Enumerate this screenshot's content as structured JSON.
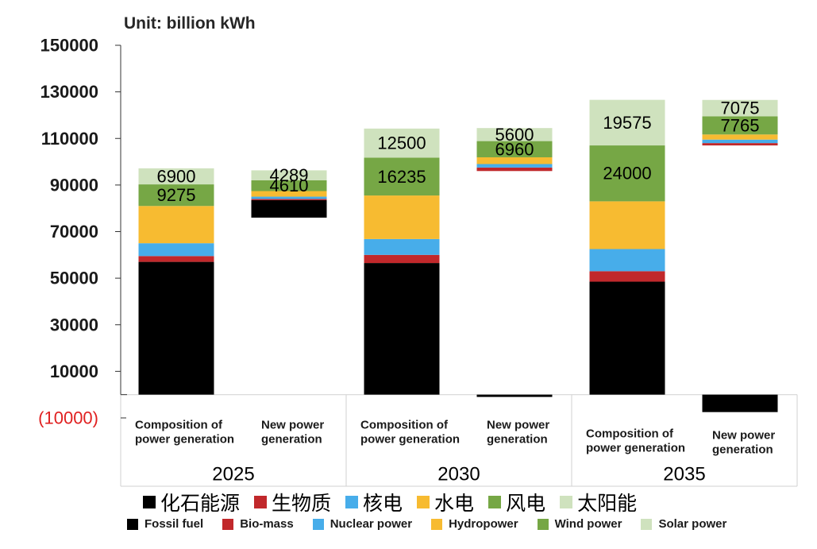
{
  "chart_data": {
    "type": "bar",
    "stacked": true,
    "title": "Unit: billion kWh",
    "ylim": [
      -10000,
      150000
    ],
    "yticks": [
      {
        "value": 150000,
        "label": "150000"
      },
      {
        "value": 130000,
        "label": "130000"
      },
      {
        "value": 110000,
        "label": "110000"
      },
      {
        "value": 90000,
        "label": "90000"
      },
      {
        "value": 70000,
        "label": "70000"
      },
      {
        "value": 50000,
        "label": "50000"
      },
      {
        "value": 30000,
        "label": "30000"
      },
      {
        "value": 10000,
        "label": "10000"
      },
      {
        "value": -10000,
        "label": "(10000)"
      }
    ],
    "negative_label_color": "#e02020",
    "years": [
      "2025",
      "2030",
      "2035"
    ],
    "bar_labels": [
      [
        "Composition of",
        "power generation"
      ],
      [
        "New power",
        "generation"
      ]
    ],
    "series_keys": [
      "fossil",
      "bio",
      "nuclear",
      "hydro",
      "wind",
      "solar"
    ],
    "colors": {
      "fossil": "#000000",
      "bio": "#c1282b",
      "nuclear": "#47adea",
      "hydro": "#f7bb31",
      "wind": "#76a745",
      "solar": "#cfe2be"
    },
    "bars": [
      {
        "base": 0,
        "values": [
          57000,
          2500,
          5500,
          16000,
          9275,
          6900
        ],
        "labels": {
          "wind": "9275",
          "solar": "6900"
        }
      },
      {
        "base": 76000,
        "values": [
          7500,
          500,
          1000,
          2400,
          4610,
          4289
        ],
        "labels": {
          "wind": "4610",
          "solar": "4289"
        }
      },
      {
        "base": 0,
        "values": [
          56500,
          3500,
          6800,
          18700,
          16235,
          12500
        ],
        "labels": {
          "wind": "16235",
          "solar": "12500"
        }
      },
      {
        "base": 96000,
        "values": [
          -1000,
          1500,
          1500,
          2900,
          6960,
          5600
        ],
        "labels": {
          "wind": "6960",
          "solar": "5600"
        }
      },
      {
        "base": 0,
        "values": [
          48500,
          4500,
          9500,
          20500,
          24000,
          19575
        ],
        "labels": {
          "wind": "24000",
          "solar": "19575"
        }
      },
      {
        "base": 107000,
        "values": [
          -7500,
          1000,
          1500,
          2200,
          7765,
          7075
        ],
        "labels": {
          "wind": "7765",
          "solar": "7075"
        }
      }
    ],
    "legend_cn": [
      "化石能源",
      "生物质",
      "核电",
      "水电",
      "风电",
      "太阳能"
    ],
    "legend_en": [
      "Fossil fuel",
      "Bio-mass",
      "Nuclear power",
      "Hydropower",
      "Wind power",
      "Solar power"
    ]
  }
}
